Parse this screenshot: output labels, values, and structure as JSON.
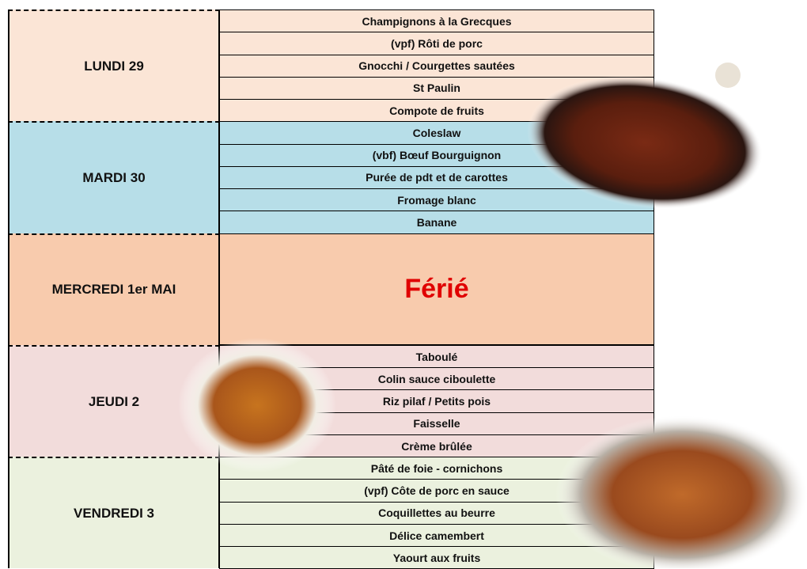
{
  "days": [
    {
      "label": "LUNDI 29",
      "items": [
        "Champignons à la Grecques",
        "(vpf) Rôti de porc",
        "Gnocchi / Courgettes sautées",
        "St Paulin",
        "Compote de fruits"
      ]
    },
    {
      "label": "MARDI 30",
      "items": [
        "Coleslaw",
        "(vbf) Bœuf Bourguignon",
        "Purée de pdt et de carottes",
        "Fromage blanc",
        "Banane"
      ]
    },
    {
      "label": "MERCREDI 1er MAI",
      "note": "Férié"
    },
    {
      "label": "JEUDI 2",
      "items": [
        "Taboulé",
        "Colin sauce ciboulette",
        "Riz pilaf / Petits pois",
        "Faisselle",
        "Crème brûlée"
      ]
    },
    {
      "label": "VENDREDI 3",
      "items": [
        "Pâté de foie - cornichons",
        "(vpf) Côte de porc en sauce",
        "Coquillettes au beurre",
        "Délice camembert",
        "Yaourt aux fruits"
      ]
    }
  ]
}
